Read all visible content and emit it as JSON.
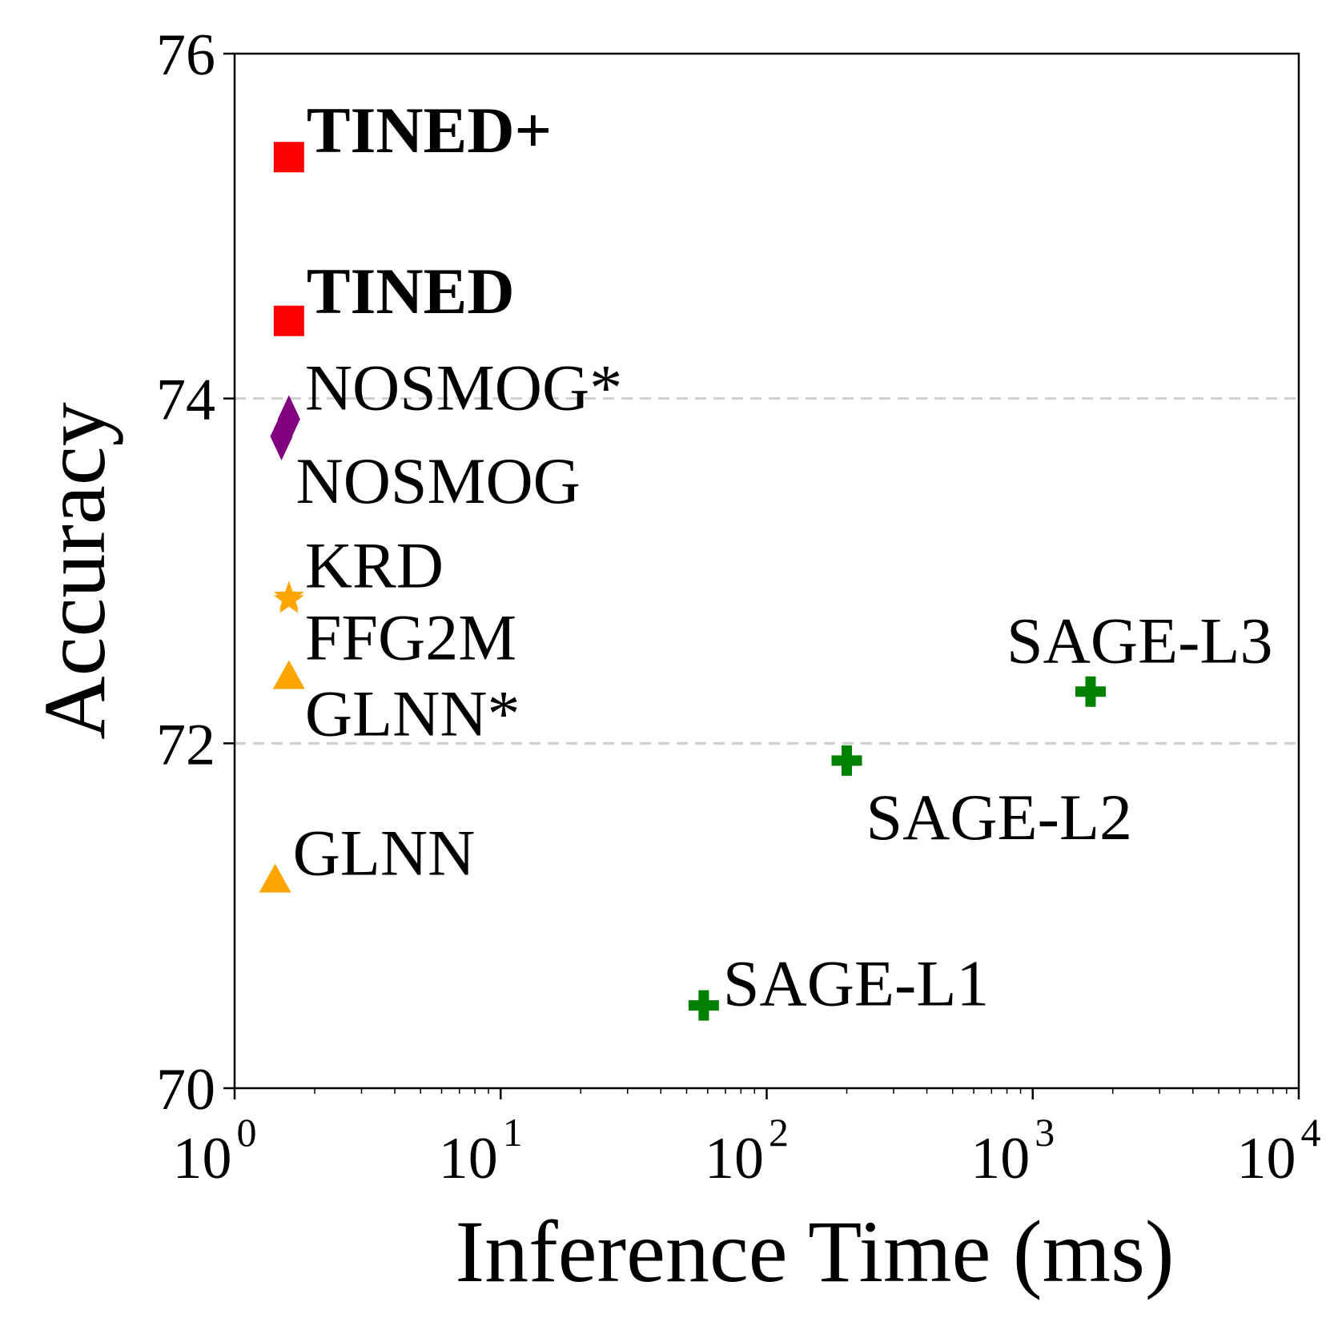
{
  "chart_data": {
    "type": "scatter",
    "title": "",
    "xlabel": "Inference Time (ms)",
    "ylabel": "Accuracy",
    "xscale": "log",
    "xlim": [
      1,
      10000
    ],
    "ylim": [
      70,
      76
    ],
    "x_ticks": [
      {
        "base": "10",
        "exp": "0"
      },
      {
        "base": "10",
        "exp": "1"
      },
      {
        "base": "10",
        "exp": "2"
      },
      {
        "base": "10",
        "exp": "3"
      },
      {
        "base": "10",
        "exp": "4"
      }
    ],
    "y_ticks": [
      "70",
      "72",
      "74",
      "76"
    ],
    "grid": "horizontal dashed at 72 and 74",
    "points": [
      {
        "label": "TINED+",
        "x": 1.6,
        "y": 75.4,
        "marker": "square",
        "color": "#ff0000",
        "bold": true
      },
      {
        "label": "TINED",
        "x": 1.6,
        "y": 74.45,
        "marker": "square",
        "color": "#ff0000",
        "bold": true
      },
      {
        "label": "NOSMOG*",
        "x": 1.6,
        "y": 73.88,
        "marker": "diamond",
        "color": "#800080",
        "bold": false
      },
      {
        "label": "NOSMOG",
        "x": 1.5,
        "y": 73.78,
        "marker": "diamond",
        "color": "#800080",
        "bold": false
      },
      {
        "label": "KRD",
        "x": 1.6,
        "y": 72.85,
        "marker": "star",
        "color": "#ffa500",
        "bold": false
      },
      {
        "label": "FFG2M",
        "x": 1.6,
        "y": 72.83,
        "marker": "star",
        "color": "#ffa500",
        "bold": false
      },
      {
        "label": "GLNN*",
        "x": 1.6,
        "y": 72.38,
        "marker": "triangle",
        "color": "#ffa500",
        "bold": false
      },
      {
        "label": "GLNN",
        "x": 1.42,
        "y": 71.2,
        "marker": "triangle",
        "color": "#ffa500",
        "bold": false
      },
      {
        "label": "SAGE-L1",
        "x": 58,
        "y": 70.48,
        "marker": "plus",
        "color": "#008000",
        "bold": false
      },
      {
        "label": "SAGE-L2",
        "x": 200,
        "y": 71.9,
        "marker": "plus",
        "color": "#008000",
        "bold": false
      },
      {
        "label": "SAGE-L3",
        "x": 1650,
        "y": 72.3,
        "marker": "plus",
        "color": "#008000",
        "bold": false
      }
    ]
  }
}
